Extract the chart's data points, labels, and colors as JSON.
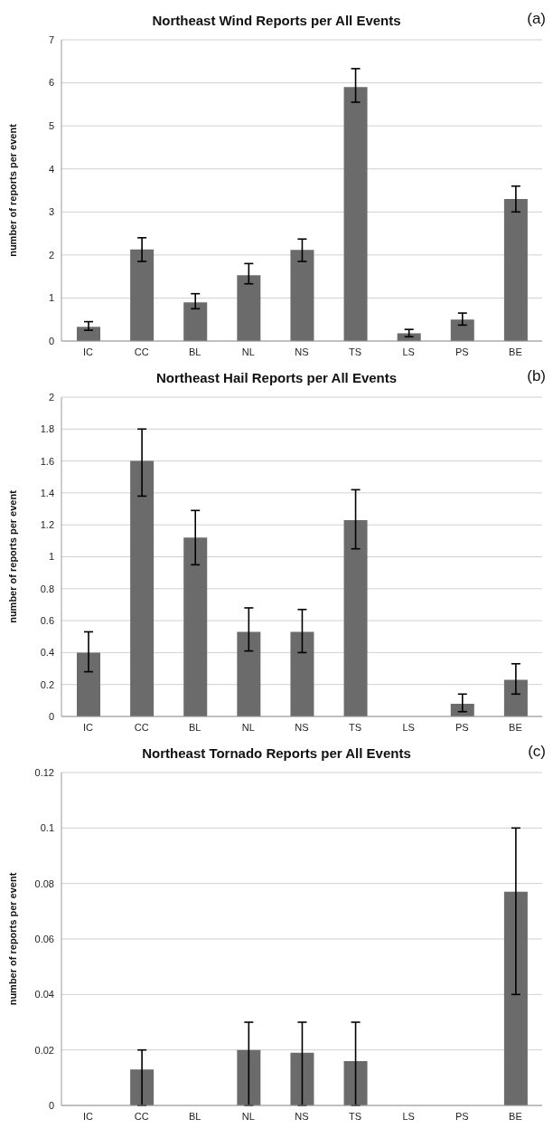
{
  "chart_data": [
    {
      "type": "bar",
      "title": "Northeast Wind Reports per All Events",
      "annotations": [
        "(a)"
      ],
      "ylabel": "number of reports per event",
      "categories": [
        "IC",
        "CC",
        "BL",
        "NL",
        "NS",
        "TS",
        "LS",
        "PS",
        "BE"
      ],
      "values": [
        0.33,
        2.13,
        0.9,
        1.53,
        2.12,
        5.9,
        0.18,
        0.5,
        3.3
      ],
      "errors": [
        [
          0.25,
          0.45
        ],
        [
          1.85,
          2.4
        ],
        [
          0.75,
          1.1
        ],
        [
          1.33,
          1.8
        ],
        [
          1.85,
          2.37
        ],
        [
          5.55,
          6.33
        ],
        [
          0.1,
          0.27
        ],
        [
          0.37,
          0.65
        ],
        [
          3.0,
          3.6
        ]
      ],
      "color": "#6b6b6b",
      "ylim": [
        0,
        7
      ],
      "yticks": [
        0,
        1,
        2,
        3,
        4,
        5,
        6,
        7
      ],
      "grid": "y"
    },
    {
      "type": "bar",
      "title": "Northeast Hail Reports per All Events",
      "annotations": [
        "(b)"
      ],
      "ylabel": "number of reports per event",
      "categories": [
        "IC",
        "CC",
        "BL",
        "NL",
        "NS",
        "TS",
        "LS",
        "PS",
        "BE"
      ],
      "values": [
        0.4,
        1.6,
        1.12,
        0.53,
        0.53,
        1.23,
        0,
        0.08,
        0.23
      ],
      "errors": [
        [
          0.28,
          0.53
        ],
        [
          1.38,
          1.8
        ],
        [
          0.95,
          1.29
        ],
        [
          0.41,
          0.68
        ],
        [
          0.4,
          0.67
        ],
        [
          1.05,
          1.42
        ],
        [
          0,
          0
        ],
        [
          0.03,
          0.14
        ],
        [
          0.14,
          0.33
        ]
      ],
      "color": "#6b6b6b",
      "ylim": [
        0,
        2
      ],
      "yticks": [
        0,
        0.2,
        0.4,
        0.6,
        0.8,
        1,
        1.2,
        1.4,
        1.6,
        1.8,
        2
      ],
      "grid": "y"
    },
    {
      "type": "bar",
      "title": "Northeast Tornado Reports per All Events",
      "annotations": [
        "(c)"
      ],
      "ylabel": "number of reports per event",
      "categories": [
        "IC",
        "CC",
        "BL",
        "NL",
        "NS",
        "TS",
        "LS",
        "PS",
        "BE"
      ],
      "values": [
        0,
        0.013,
        0,
        0.02,
        0.019,
        0.016,
        0,
        0,
        0.077
      ],
      "errors": [
        [
          0,
          0
        ],
        [
          0,
          0.02
        ],
        [
          0,
          0
        ],
        [
          0,
          0.03
        ],
        [
          0,
          0.03
        ],
        [
          0,
          0.03
        ],
        [
          0,
          0
        ],
        [
          0,
          0
        ],
        [
          0.04,
          0.1
        ]
      ],
      "color": "#6b6b6b",
      "ylim": [
        0,
        0.12
      ],
      "yticks": [
        0,
        0.02,
        0.04,
        0.06,
        0.08,
        0.1,
        0.12
      ],
      "grid": "y"
    }
  ]
}
